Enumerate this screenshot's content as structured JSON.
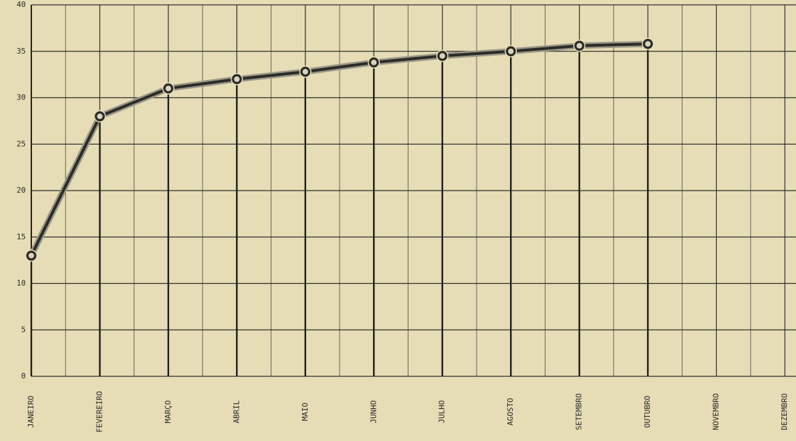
{
  "chart_data": {
    "type": "line",
    "categories": [
      "JANEIRO",
      "FEVEREIRO",
      "MARÇO",
      "ABRIL",
      "MAIO",
      "JUNHO",
      "JULHO",
      "AGOSTO",
      "SETEMBRO",
      "OUTUBRO",
      "NOVEMBRO",
      "DEZEMBRO"
    ],
    "values": [
      13,
      28,
      31,
      32,
      32.8,
      33.8,
      34.5,
      35,
      35.6,
      35.8,
      null,
      null
    ],
    "color": "#2b2b27",
    "ylim": [
      0,
      40
    ],
    "yticks": [
      0,
      5,
      10,
      15,
      20,
      25,
      30,
      35,
      40
    ],
    "grid": true
  }
}
